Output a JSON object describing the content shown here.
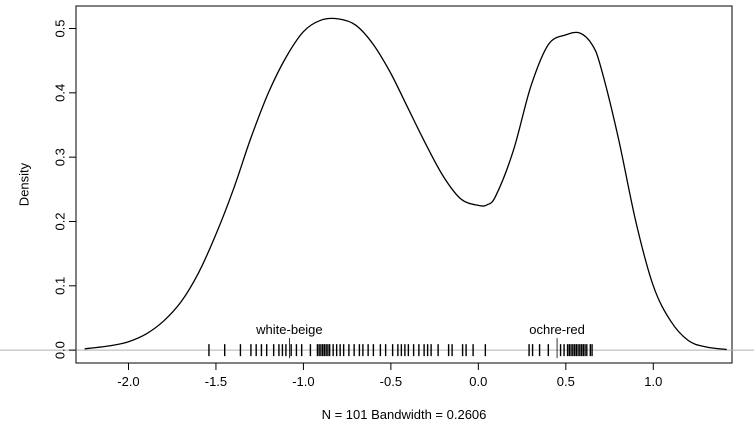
{
  "chart_data": {
    "type": "line",
    "title": "",
    "xlabel": "N = 101   Bandwidth = 0.2606",
    "ylabel": "Density",
    "xlim": [
      -2.3,
      1.45
    ],
    "ylim": [
      -0.02,
      0.535
    ],
    "x_ticks": [
      -2.0,
      -1.5,
      -1.0,
      -0.5,
      0.0,
      0.5,
      1.0
    ],
    "x_tick_labels": [
      "-2.0",
      "-1.5",
      "-1.0",
      "-0.5",
      "0.0",
      "0.5",
      "1.0"
    ],
    "y_ticks": [
      0.0,
      0.1,
      0.2,
      0.3,
      0.4,
      0.5
    ],
    "y_tick_labels": [
      "0.0",
      "0.1",
      "0.2",
      "0.3",
      "0.4",
      "0.5"
    ],
    "grid": false,
    "line_color": "#000000",
    "baseline_color": "#b0b0b0",
    "series": [
      {
        "x": [
          -2.25,
          -2.1,
          -2.0,
          -1.9,
          -1.8,
          -1.7,
          -1.6,
          -1.5,
          -1.4,
          -1.3,
          -1.2,
          -1.1,
          -1.0,
          -0.9,
          -0.8,
          -0.7,
          -0.6,
          -0.5,
          -0.4,
          -0.3,
          -0.2,
          -0.1,
          0.0,
          0.05,
          0.1,
          0.2,
          0.3,
          0.4,
          0.5,
          0.58,
          0.65,
          0.7,
          0.8,
          0.9,
          1.0,
          1.1,
          1.2,
          1.3,
          1.42
        ],
        "y": [
          0.002,
          0.007,
          0.013,
          0.025,
          0.045,
          0.075,
          0.12,
          0.18,
          0.25,
          0.33,
          0.4,
          0.455,
          0.495,
          0.513,
          0.515,
          0.505,
          0.475,
          0.43,
          0.375,
          0.32,
          0.27,
          0.235,
          0.225,
          0.226,
          0.24,
          0.31,
          0.41,
          0.475,
          0.49,
          0.493,
          0.475,
          0.44,
          0.33,
          0.2,
          0.1,
          0.045,
          0.015,
          0.005,
          0.001
        ]
      }
    ],
    "rug": [
      -1.54,
      -1.45,
      -1.36,
      -1.3,
      -1.27,
      -1.24,
      -1.21,
      -1.17,
      -1.14,
      -1.12,
      -1.1,
      -1.07,
      -1.04,
      -1.01,
      -0.96,
      -0.92,
      -0.91,
      -0.9,
      -0.89,
      -0.88,
      -0.87,
      -0.86,
      -0.85,
      -0.83,
      -0.81,
      -0.79,
      -0.77,
      -0.74,
      -0.71,
      -0.68,
      -0.66,
      -0.63,
      -0.6,
      -0.56,
      -0.53,
      -0.49,
      -0.46,
      -0.44,
      -0.42,
      -0.4,
      -0.37,
      -0.34,
      -0.31,
      -0.29,
      -0.27,
      -0.23,
      -0.17,
      -0.15,
      -0.09,
      -0.07,
      -0.03,
      0.04,
      0.29,
      0.31,
      0.35,
      0.4,
      0.47,
      0.49,
      0.51,
      0.52,
      0.53,
      0.54,
      0.55,
      0.56,
      0.57,
      0.58,
      0.59,
      0.6,
      0.61,
      0.62,
      0.64,
      0.65
    ],
    "annotations": [
      {
        "text": "white-beige",
        "x": -1.08
      },
      {
        "text": "ochre-red",
        "x": 0.45
      }
    ]
  }
}
